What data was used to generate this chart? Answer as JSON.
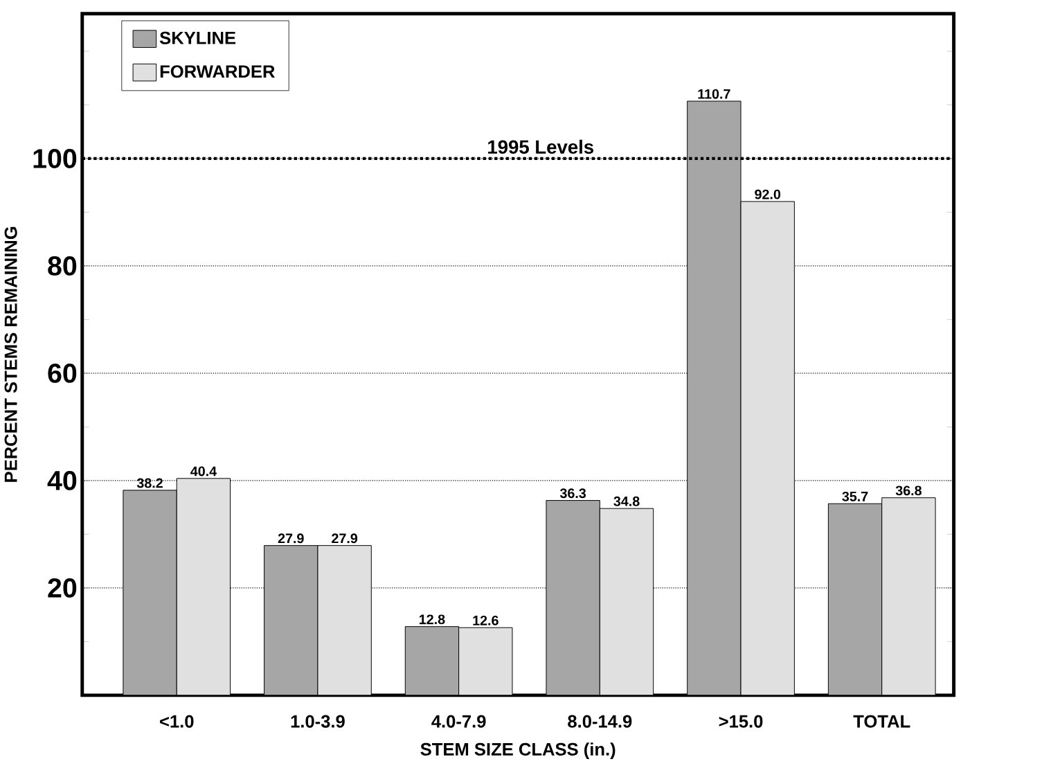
{
  "chart_data": {
    "type": "bar",
    "xlabel": "STEM  SIZE CLASS (in.)",
    "ylabel": "PERCENT STEMS REMAINING",
    "categories": [
      "<1.0",
      "1.0-3.9",
      "4.0-7.9",
      "8.0-14.9",
      ">15.0",
      "TOTAL"
    ],
    "series": [
      {
        "name": "SKYLINE",
        "color": "#a6a6a6",
        "values": [
          38.2,
          27.9,
          12.8,
          36.3,
          110.7,
          35.7
        ],
        "value_labels": [
          "38.2",
          "27.9",
          "12.8",
          "36.3",
          "110.7",
          "35.7"
        ]
      },
      {
        "name": "FORWARDER",
        "color": "#e0e0e0",
        "values": [
          40.4,
          27.9,
          12.6,
          34.8,
          92.0,
          36.8
        ],
        "value_labels": [
          "40.4",
          "27.9",
          "12.6",
          "34.8",
          "92.0",
          "36.8"
        ]
      }
    ],
    "ylim": [
      0,
      127
    ],
    "yticks": [
      {
        "value": 10,
        "label": null
      },
      20,
      {
        "value": 30,
        "label": null
      },
      40,
      {
        "value": 50,
        "label": null
      },
      60,
      {
        "value": 70,
        "label": null
      },
      80,
      {
        "value": 90,
        "label": null
      },
      100,
      {
        "value": 110,
        "label": null
      },
      {
        "value": 120,
        "label": null
      }
    ],
    "ref_lines": [
      {
        "axis": "y",
        "value": 100,
        "label": "1995 Levels",
        "line_style": "dotted"
      }
    ],
    "grid": "y",
    "legend": "top left"
  }
}
